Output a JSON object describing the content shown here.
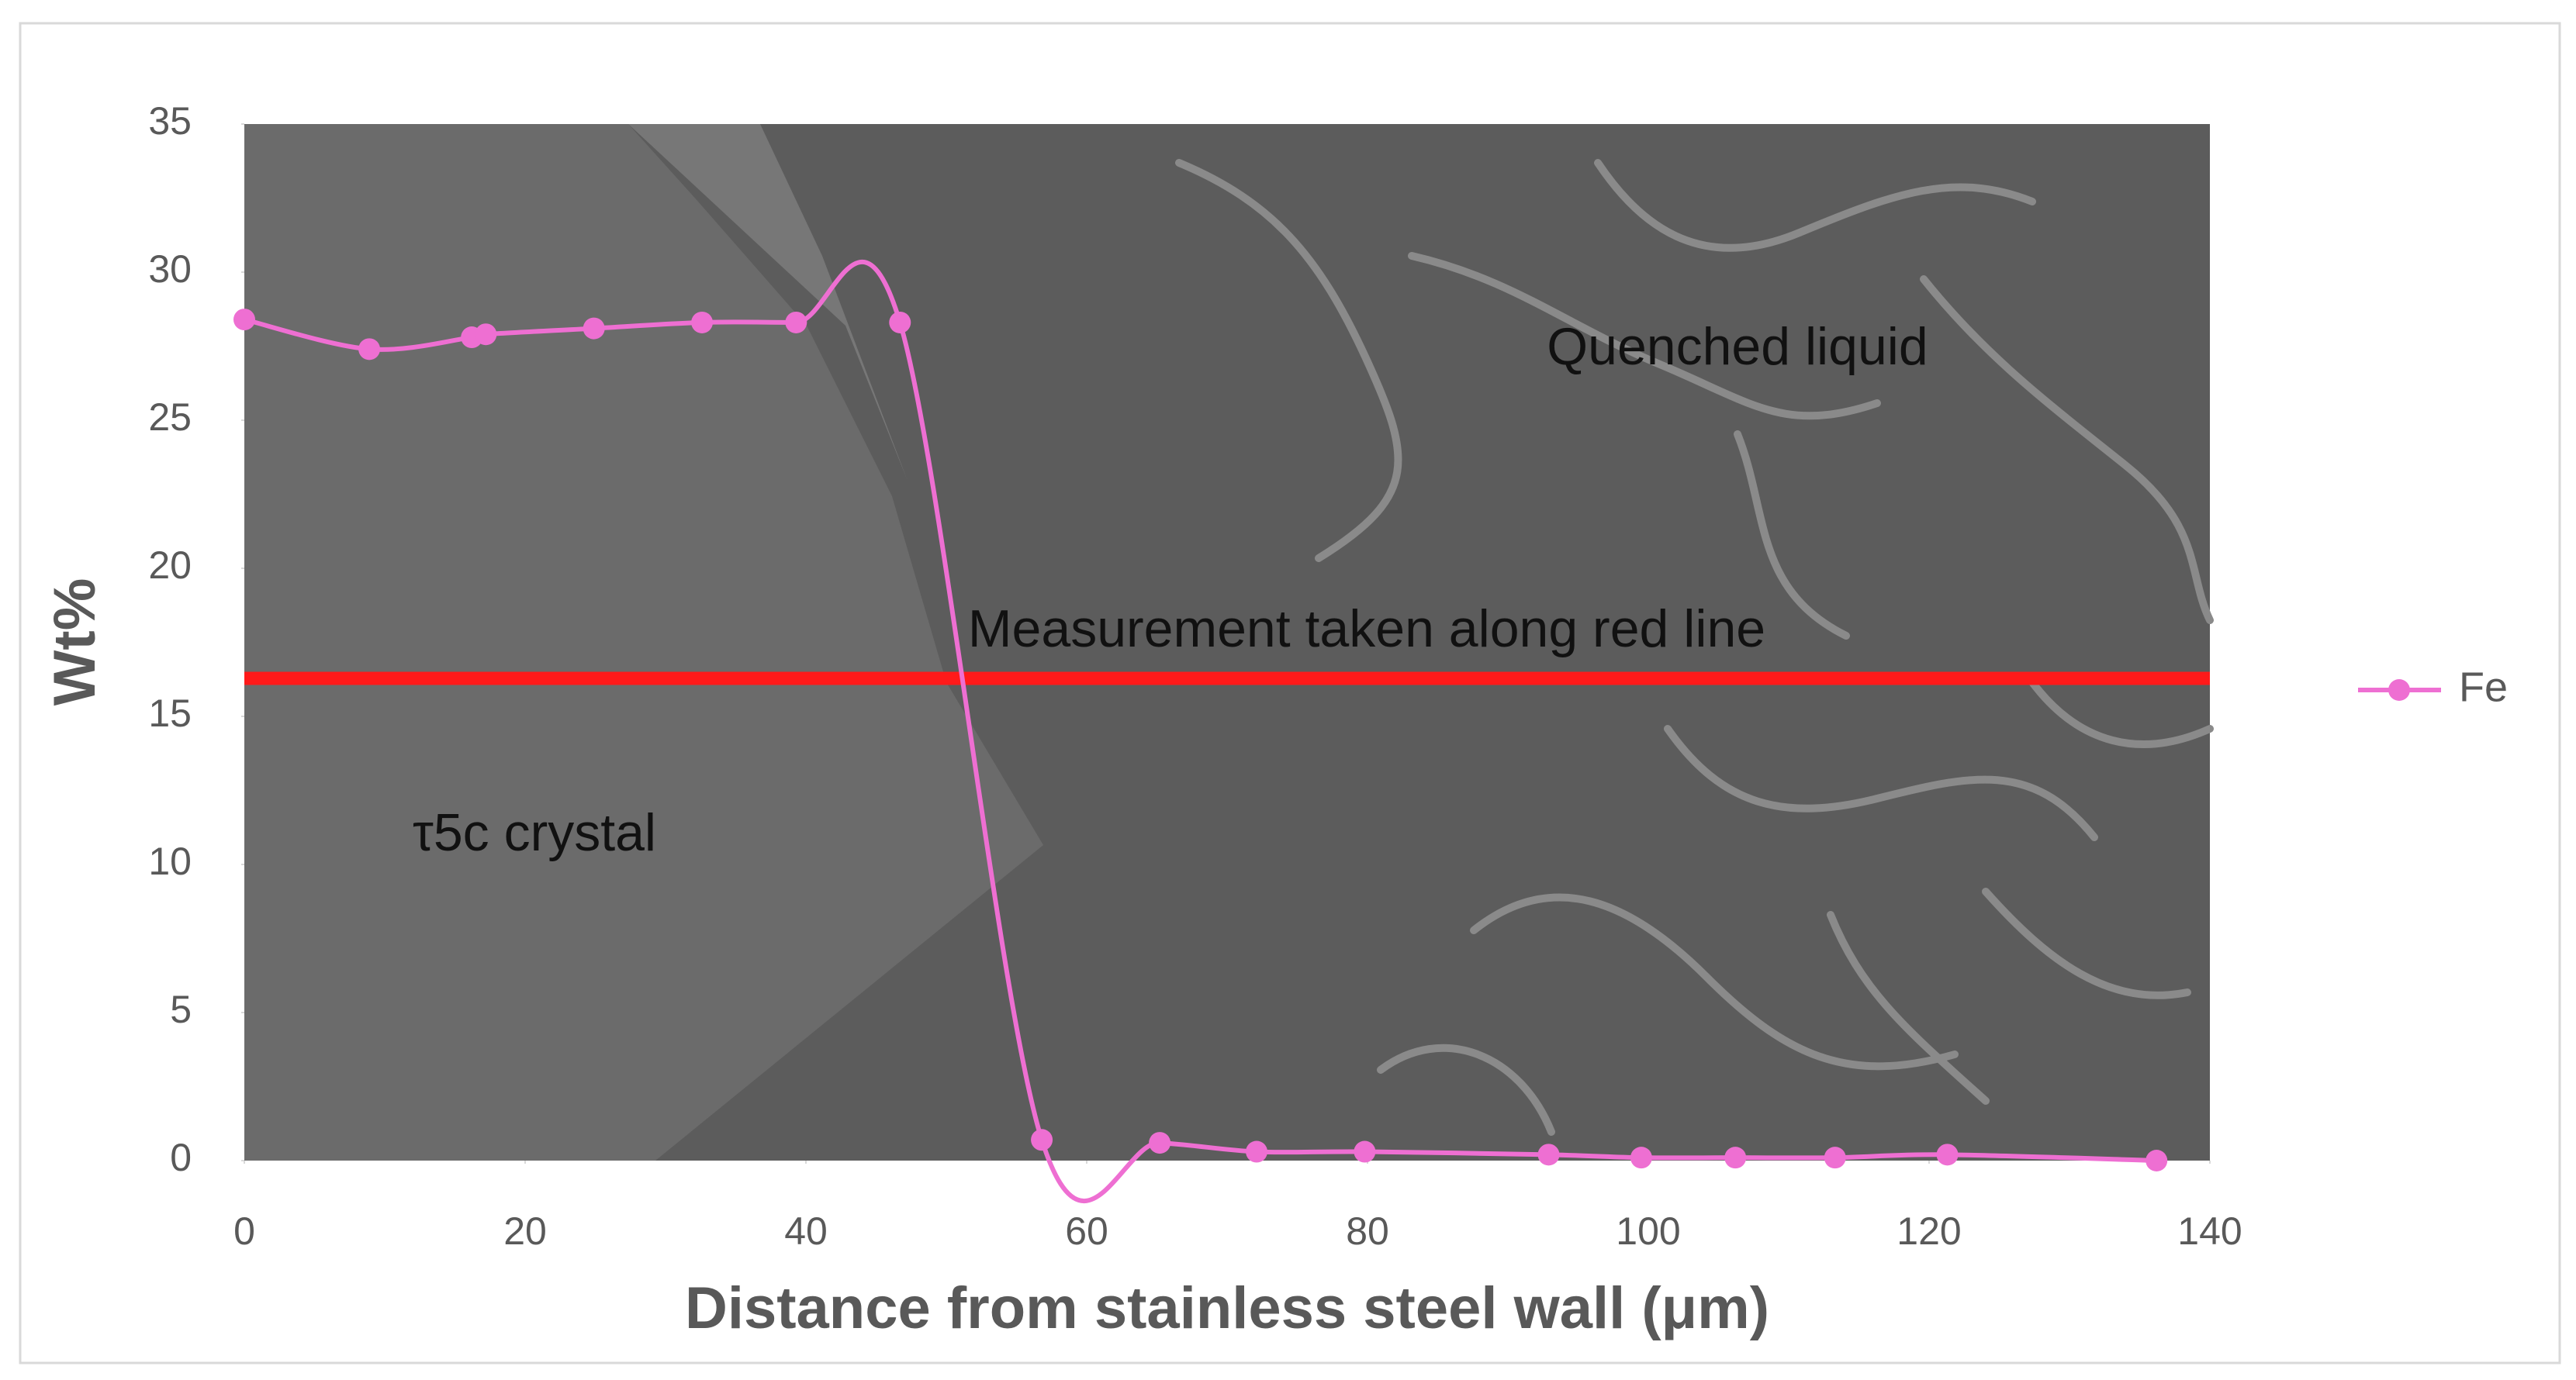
{
  "chart_data": {
    "type": "line",
    "x_label": "Distance from stainless steel wall (μm)",
    "y_label": "Wt%",
    "x": [
      0,
      8.9,
      16.2,
      17.2,
      24.9,
      32.6,
      39.3,
      46.7,
      56.8,
      65.2,
      72.1,
      79.8,
      92.9,
      99.5,
      106.2,
      113.3,
      121.3,
      136.2
    ],
    "series": [
      {
        "name": "Fe",
        "color": "#ee6fd2",
        "values": [
          28.4,
          27.4,
          27.8,
          27.9,
          28.1,
          28.3,
          28.3,
          28.3,
          0.7,
          0.6,
          0.3,
          0.3,
          0.2,
          0.1,
          0.1,
          0.1,
          0.2,
          0.0
        ]
      }
    ],
    "xlim": [
      0,
      140
    ],
    "xticks": [
      0,
      20,
      40,
      60,
      80,
      100,
      120,
      140
    ],
    "ylim": [
      0,
      35
    ],
    "yticks": [
      0,
      5,
      10,
      15,
      20,
      25,
      30,
      35
    ],
    "smooth": true,
    "legend": "right",
    "annotations": [
      "Quenched liquid",
      "Measurement taken along red line",
      "τ5c crystal"
    ]
  }
}
